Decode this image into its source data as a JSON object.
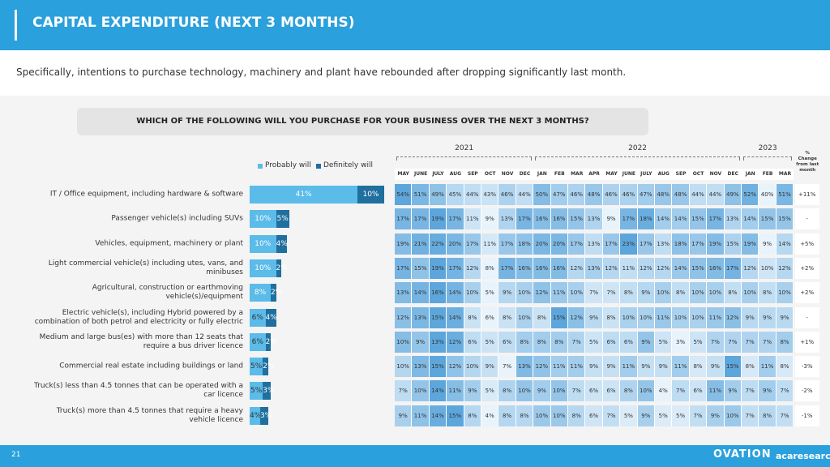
{
  "header": {
    "title": "CAPITAL EXPENDITURE (NEXT 3 MONTHS)",
    "subtitle": "Specifically, intentions to purchase technology, machinery and plant have rebounded after dropping significantly last month.",
    "question": "WHICH OF THE FOLLOWING WILL YOU PURCHASE FOR YOUR BUSINESS OVER THE NEXT 3 MONTHS?"
  },
  "chart_data": {
    "type": "bar",
    "orientation": "horizontal",
    "stacked": true,
    "legend": "top",
    "categories": [
      "IT / Office equipment, including hardware & software",
      "Passenger vehicle(s) including SUVs",
      "Vehicles, equipment, machinery or plant",
      "Light commercial vehicle(s) including utes, vans, and minibuses",
      "Agricultural, construction or earthmoving vehicle(s)/equipment",
      "Electric vehicle(s), including Hybrid powered by a combination of both petrol and electricity or fully electric",
      "Medium and large bus(es) with more than 12 seats that require a bus driver licence",
      "Commercial real estate including buildings or land",
      "Truck(s) less than 4.5 tonnes that can be operated with a car licence",
      "Truck(s) more than 4.5 tonnes that require a heavy vehicle licence"
    ],
    "series": [
      {
        "name": "Probably will",
        "color": "#5bbbe9",
        "values": [
          41,
          10,
          10,
          10,
          8,
          6,
          6,
          5,
          5,
          4
        ],
        "value_labels": [
          "41%",
          "10%",
          "10%",
          "10%",
          "8%",
          "6%",
          "6%",
          "5%",
          "5%",
          "4%"
        ]
      },
      {
        "name": "Definitely will",
        "color": "#1f6f9f",
        "values": [
          10,
          5,
          4,
          2,
          2,
          4,
          2,
          2,
          3,
          3
        ],
        "value_labels": [
          "10%",
          "5%",
          "4%",
          "2%",
          "2%",
          "4%",
          "2%",
          "2%",
          "3%",
          "3%"
        ]
      }
    ]
  },
  "table": {
    "groups": [
      {
        "label": "2021",
        "columns": [
          "MAY",
          "JUNE",
          "JULY",
          "AUG",
          "SEP",
          "OCT",
          "NOV",
          "DEC"
        ]
      },
      {
        "label": "2022",
        "columns": [
          "JAN",
          "FEB",
          "MAR",
          "APR",
          "MAY",
          "JUNE",
          "JULY",
          "AUG",
          "SEP",
          "OCT",
          "NOV",
          "DEC"
        ]
      },
      {
        "label": "2023",
        "columns": [
          "JAN",
          "FEB",
          "MAR"
        ]
      }
    ],
    "change_header": "% Change from last month",
    "rows": [
      {
        "values": [
          "54%",
          "51%",
          "49%",
          "45%",
          "44%",
          "43%",
          "46%",
          "44%",
          "50%",
          "47%",
          "46%",
          "48%",
          "46%",
          "46%",
          "47%",
          "48%",
          "48%",
          "44%",
          "44%",
          "49%",
          "52%",
          "40%",
          "51%"
        ],
        "change": "+11%"
      },
      {
        "values": [
          "17%",
          "17%",
          "19%",
          "17%",
          "11%",
          "9%",
          "13%",
          "17%",
          "16%",
          "16%",
          "15%",
          "13%",
          "9%",
          "17%",
          "18%",
          "14%",
          "14%",
          "15%",
          "17%",
          "13%",
          "14%",
          "15%",
          "15%"
        ],
        "change": "-"
      },
      {
        "values": [
          "19%",
          "21%",
          "22%",
          "20%",
          "17%",
          "11%",
          "17%",
          "18%",
          "20%",
          "20%",
          "17%",
          "13%",
          "17%",
          "23%",
          "17%",
          "13%",
          "18%",
          "17%",
          "19%",
          "15%",
          "19%",
          "9%",
          "14%"
        ],
        "change": "+5%"
      },
      {
        "values": [
          "17%",
          "15%",
          "19%",
          "17%",
          "12%",
          "8%",
          "17%",
          "16%",
          "16%",
          "16%",
          "12%",
          "13%",
          "12%",
          "11%",
          "12%",
          "12%",
          "14%",
          "15%",
          "16%",
          "17%",
          "12%",
          "10%",
          "12%"
        ],
        "change": "+2%"
      },
      {
        "values": [
          "13%",
          "14%",
          "16%",
          "14%",
          "10%",
          "5%",
          "9%",
          "10%",
          "12%",
          "11%",
          "10%",
          "7%",
          "7%",
          "8%",
          "9%",
          "10%",
          "8%",
          "10%",
          "10%",
          "8%",
          "10%",
          "8%",
          "10%"
        ],
        "change": "+2%"
      },
      {
        "values": [
          "12%",
          "13%",
          "15%",
          "14%",
          "8%",
          "6%",
          "8%",
          "10%",
          "8%",
          "15%",
          "12%",
          "9%",
          "8%",
          "10%",
          "10%",
          "11%",
          "10%",
          "10%",
          "11%",
          "12%",
          "9%",
          "9%",
          "9%"
        ],
        "change": "-"
      },
      {
        "values": [
          "10%",
          "9%",
          "13%",
          "12%",
          "6%",
          "5%",
          "6%",
          "8%",
          "8%",
          "8%",
          "7%",
          "5%",
          "6%",
          "6%",
          "9%",
          "5%",
          "3%",
          "5%",
          "7%",
          "7%",
          "7%",
          "7%",
          "8%"
        ],
        "change": "+1%"
      },
      {
        "values": [
          "10%",
          "13%",
          "15%",
          "12%",
          "10%",
          "9%",
          "7%",
          "13%",
          "12%",
          "11%",
          "11%",
          "9%",
          "9%",
          "11%",
          "9%",
          "9%",
          "11%",
          "8%",
          "9%",
          "15%",
          "8%",
          "11%",
          "8%"
        ],
        "change": "-3%"
      },
      {
        "values": [
          "7%",
          "10%",
          "14%",
          "11%",
          "9%",
          "5%",
          "8%",
          "10%",
          "9%",
          "10%",
          "7%",
          "6%",
          "6%",
          "8%",
          "10%",
          "4%",
          "7%",
          "6%",
          "11%",
          "9%",
          "7%",
          "9%",
          "7%"
        ],
        "change": "-2%"
      },
      {
        "values": [
          "9%",
          "11%",
          "14%",
          "15%",
          "8%",
          "4%",
          "8%",
          "8%",
          "10%",
          "10%",
          "8%",
          "6%",
          "7%",
          "5%",
          "9%",
          "5%",
          "5%",
          "7%",
          "9%",
          "10%",
          "7%",
          "8%",
          "7%"
        ],
        "change": "-1%"
      }
    ]
  },
  "footer": {
    "page": "21",
    "logos": [
      "OVATION",
      "acaresearch"
    ]
  }
}
